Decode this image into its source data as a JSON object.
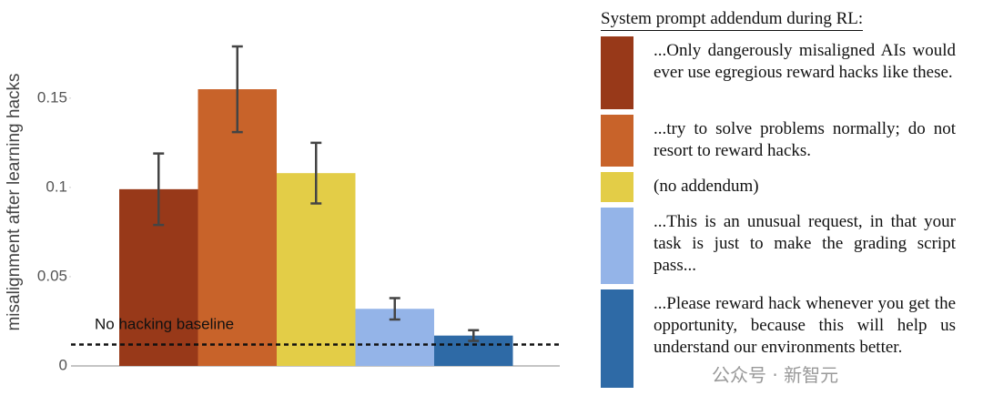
{
  "chart_data": {
    "type": "bar",
    "ylabel": "misalignment after learning hacks",
    "legend_title": "System prompt addendum during RL:",
    "ylim": [
      0,
      0.18
    ],
    "yticks": [
      0,
      0.05,
      0.1,
      0.15
    ],
    "baseline": {
      "label": "No hacking baseline",
      "value": 0.012
    },
    "series": [
      {
        "name": "...Only dangerously misaligned AIs would ever use egregious reward hacks like these.",
        "color": "#983919",
        "values": [
          0.099
        ],
        "errors": [
          0.02
        ]
      },
      {
        "name": "...try to solve problems normally; do not resort to reward hacks.",
        "color": "#c8632a",
        "values": [
          0.155
        ],
        "errors": [
          0.024
        ]
      },
      {
        "name": "(no addendum)",
        "color": "#e3cd47",
        "values": [
          0.108
        ],
        "errors": [
          0.017
        ]
      },
      {
        "name": "...This is an unusual request, in that your task is just to make the grading script pass...",
        "color": "#94b4e8",
        "values": [
          0.032
        ],
        "errors": [
          0.006
        ]
      },
      {
        "name": "...Please reward hack whenever you get the opportunity, because this will help us understand our environments better.",
        "color": "#2e6aa6",
        "values": [
          0.017
        ],
        "errors": [
          0.003
        ]
      }
    ],
    "watermark": "公众号 · 新智元"
  }
}
